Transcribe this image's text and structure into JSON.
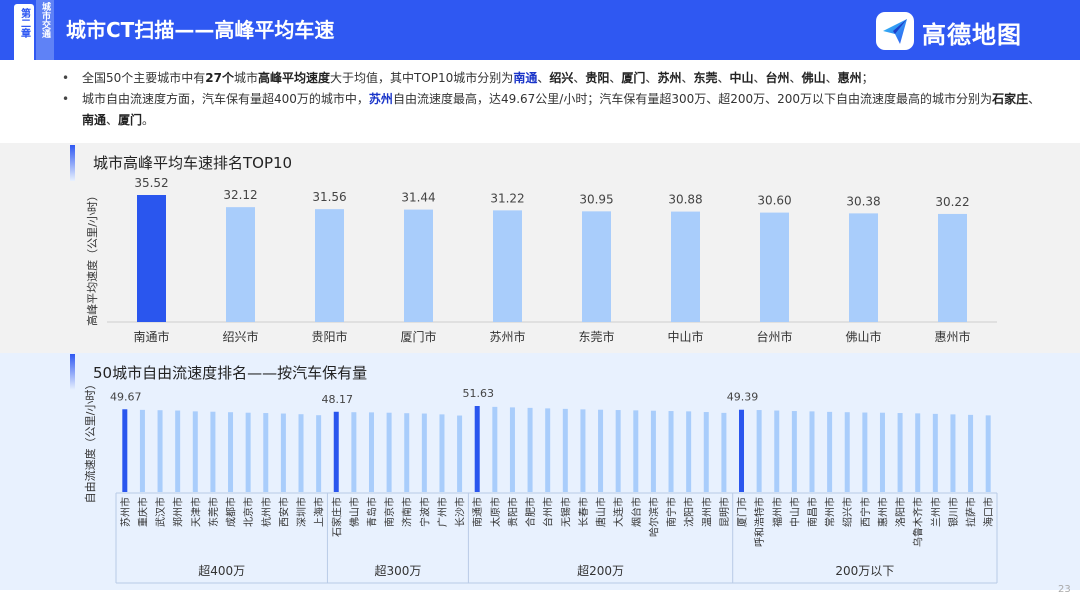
{
  "header": {
    "chapter_tab": "第二章",
    "section_tab": "城市交通",
    "title": "城市CT扫描——高峰平均车速",
    "logo_text": "高德地图"
  },
  "bullets": {
    "b1": {
      "t1": "全国50个主要城市中有",
      "t2": "27个",
      "t3": "城市",
      "t4": "高峰平均速度",
      "t5": "大于均值，其中TOP10城市分别为",
      "c1": "南通",
      "c2": "绍兴",
      "c3": "贵阳",
      "c4": "厦门",
      "c5": "苏州",
      "c6": "东莞",
      "c7": "中山",
      "c8": "台州",
      "c9": "佛山",
      "c10": "惠州",
      "sep": "、",
      "end": "；"
    },
    "b2": {
      "t1": "城市自由流速度方面，汽车保有量超400万的城市中，",
      "t2": "苏州",
      "t3": "自由流速度最高，达49.67公里/小时；汽车保有量超300万、超200万、200万以下自由流速度最高的城市分别为",
      "c1": "石家庄",
      "c2": "南通",
      "c3": "厦门",
      "sep": "、",
      "end": "。"
    }
  },
  "section1_title": "城市高峰平均车速排名TOP10",
  "section2_title": "50城市自由流速度排名——按汽车保有量",
  "page_number": "23",
  "colors": {
    "brand": "#2f58f2",
    "bar_light": "#a9cdfb",
    "bar_highlight": "#2a56ee"
  },
  "chart_data": [
    {
      "type": "bar",
      "ylabel": "高峰平均速度（公里/小时）",
      "categories": [
        "南通市",
        "绍兴市",
        "贵阳市",
        "厦门市",
        "苏州市",
        "东莞市",
        "中山市",
        "台州市",
        "佛山市",
        "惠州市"
      ],
      "values": [
        35.52,
        32.12,
        31.56,
        31.44,
        31.22,
        30.95,
        30.88,
        30.6,
        30.38,
        30.22
      ],
      "value_labels": [
        "35.52",
        "32.12",
        "31.56",
        "31.44",
        "31.22",
        "30.95",
        "30.88",
        "30.60",
        "30.38",
        "30.22"
      ],
      "highlight_index": 0,
      "ylim": [
        0,
        36
      ]
    },
    {
      "type": "bar",
      "ylabel": "自由流速度（公里/小时）",
      "ylim": [
        0,
        52
      ],
      "groups": [
        {
          "label": "超400万",
          "cities": [
            "苏州市",
            "重庆市",
            "武汉市",
            "郑州市",
            "天津市",
            "东莞市",
            "成都市",
            "北京市",
            "杭州市",
            "西安市",
            "深圳市",
            "上海市"
          ],
          "values": [
            49.67,
            49.3,
            49.1,
            48.9,
            48.4,
            48.2,
            47.9,
            47.6,
            47.4,
            47.1,
            46.7,
            46.1
          ],
          "top_label": "49.67"
        },
        {
          "label": "超300万",
          "cities": [
            "石家庄市",
            "佛山市",
            "青岛市",
            "南京市",
            "济南市",
            "宁波市",
            "广州市",
            "长沙市"
          ],
          "values": [
            48.17,
            47.9,
            47.8,
            47.6,
            47.3,
            47.1,
            46.6,
            45.9
          ],
          "top_label": "48.17"
        },
        {
          "label": "超200万",
          "cities": [
            "南通市",
            "太原市",
            "贵阳市",
            "合肥市",
            "台州市",
            "无锡市",
            "长春市",
            "唐山市",
            "大连市",
            "烟台市",
            "哈尔滨市",
            "南宁市",
            "沈阳市",
            "温州市",
            "昆明市"
          ],
          "values": [
            51.63,
            51.1,
            50.8,
            50.5,
            50.2,
            49.9,
            49.6,
            49.4,
            49.2,
            49.0,
            48.8,
            48.6,
            48.4,
            48.0,
            47.5
          ],
          "top_label": "51.63"
        },
        {
          "label": "200万以下",
          "cities": [
            "厦门市",
            "呼和浩特市",
            "福州市",
            "中山市",
            "南昌市",
            "常州市",
            "绍兴市",
            "西宁市",
            "惠州市",
            "洛阳市",
            "乌鲁木齐市",
            "兰州市",
            "银川市",
            "拉萨市",
            "海口市"
          ],
          "values": [
            49.39,
            49.2,
            48.9,
            48.6,
            48.4,
            48.1,
            47.9,
            47.7,
            47.6,
            47.4,
            47.2,
            46.9,
            46.6,
            46.3,
            46.0
          ],
          "top_label": "49.39"
        }
      ]
    }
  ]
}
